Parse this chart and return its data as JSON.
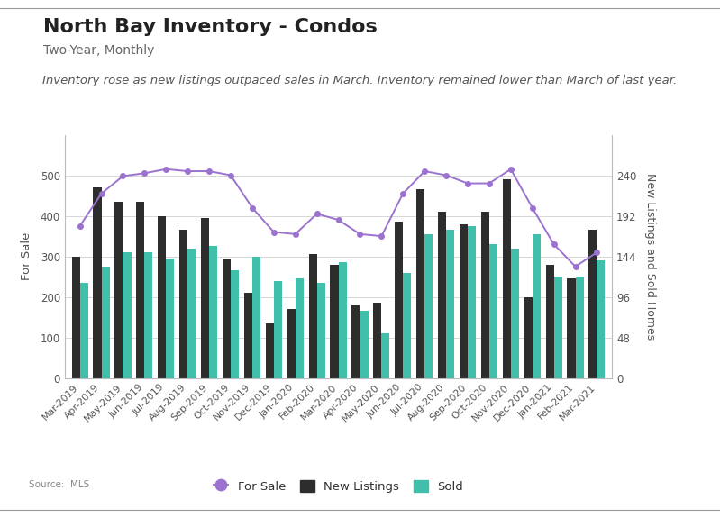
{
  "title": "North Bay Inventory - Condos",
  "subtitle": "Two-Year, Monthly",
  "annotation": "Inventory rose as new listings outpaced sales in March. Inventory remained lower than March of last year.",
  "source": "Source:  MLS",
  "categories": [
    "Mar-2019",
    "Apr-2019",
    "May-2019",
    "Jun-2019",
    "Jul-2019",
    "Aug-2019",
    "Sep-2019",
    "Oct-2019",
    "Nov-2019",
    "Dec-2019",
    "Jan-2020",
    "Feb-2020",
    "Mar-2020",
    "Apr-2020",
    "May-2020",
    "Jun-2020",
    "Jul-2020",
    "Aug-2020",
    "Sep-2020",
    "Oct-2020",
    "Nov-2020",
    "Dec-2020",
    "Jan-2021",
    "Feb-2021",
    "Mar-2021"
  ],
  "for_sale": [
    375,
    455,
    498,
    505,
    515,
    510,
    510,
    500,
    420,
    360,
    355,
    405,
    390,
    355,
    350,
    455,
    510,
    500,
    480,
    480,
    515,
    420,
    330,
    275,
    310
  ],
  "new_listings": [
    300,
    470,
    435,
    435,
    400,
    365,
    395,
    295,
    210,
    135,
    170,
    305,
    280,
    180,
    185,
    385,
    465,
    410,
    380,
    410,
    490,
    200,
    280,
    245,
    365
  ],
  "sold": [
    235,
    275,
    310,
    310,
    295,
    320,
    325,
    265,
    300,
    240,
    245,
    235,
    285,
    165,
    110,
    260,
    355,
    365,
    375,
    330,
    320,
    355,
    250,
    250,
    290
  ],
  "for_sale_color": "#9b72cf",
  "new_listings_color": "#2d2d2d",
  "sold_color": "#40bfaa",
  "left_ylim": [
    0,
    600
  ],
  "right_ylim": [
    0,
    288
  ],
  "left_yticks": [
    0,
    100,
    200,
    300,
    400,
    500
  ],
  "right_yticks": [
    0,
    48,
    96,
    144,
    192,
    240
  ],
  "left_ylabel": "For Sale",
  "right_ylabel": "New Listings and Sold Homes",
  "background_color": "#ffffff",
  "plot_bg_color": "#f5f5f0",
  "title_fontsize": 16,
  "subtitle_fontsize": 10,
  "annotation_fontsize": 9.5
}
